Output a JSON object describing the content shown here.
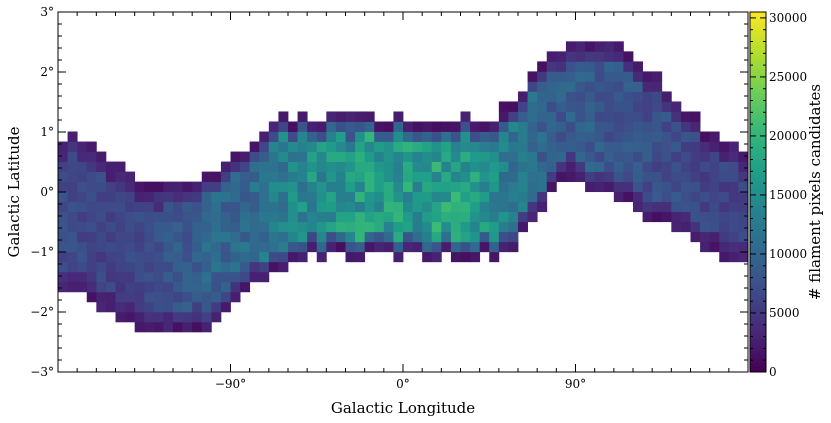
{
  "chart_data": [
    {
      "type": "heatmap",
      "xlabel": "Galactic Longitude",
      "ylabel": "Galactic Latitude",
      "xlim": [
        -180,
        180
      ],
      "ylim": [
        -3,
        3
      ],
      "x_ticks": [
        -90,
        0,
        90
      ],
      "x_tick_labels": [
        "−90°",
        "0°",
        "90°"
      ],
      "y_ticks": [
        -3,
        -2,
        -1,
        0,
        1,
        2,
        3
      ],
      "y_tick_labels": [
        "−3°",
        "−2°",
        "−1°",
        "0°",
        "1°",
        "2°",
        "3°"
      ],
      "bin_size_deg": {
        "longitude": 5,
        "latitude": 0.167
      },
      "colormap": "viridis",
      "colorbar": {
        "label": "# filament pixels candidates",
        "range": [
          0,
          30500
        ],
        "ticks": [
          0,
          5000,
          10000,
          15000,
          20000,
          25000,
          30000
        ],
        "tick_labels": [
          "0",
          "5000",
          "10000",
          "15000",
          "20000",
          "25000",
          "30000"
        ]
      },
      "band_profile": {
        "longitude": [
          -170,
          -160,
          -150,
          -140,
          -130,
          -120,
          -110,
          -100,
          -90,
          -80,
          -70,
          -60,
          -50,
          -40,
          -30,
          -20,
          -10,
          0,
          10,
          20,
          30,
          40,
          50,
          60,
          70,
          80,
          90,
          100,
          110,
          120,
          130,
          140,
          150,
          160,
          170
        ],
        "lat_upper": [
          0.9,
          0.75,
          0.5,
          0.25,
          0.15,
          0.15,
          0.2,
          0.35,
          0.5,
          0.8,
          1.1,
          1.25,
          1.25,
          1.25,
          1.25,
          1.25,
          1.25,
          1.25,
          1.25,
          1.25,
          1.25,
          1.25,
          1.3,
          1.7,
          2.2,
          2.4,
          2.5,
          2.6,
          2.5,
          2.3,
          2.0,
          1.7,
          1.35,
          1.0,
          0.75
        ],
        "lat_lower": [
          -1.6,
          -1.85,
          -2.1,
          -2.25,
          -2.35,
          -2.4,
          -2.35,
          -2.2,
          -1.9,
          -1.6,
          -1.35,
          -1.15,
          -1.1,
          -1.1,
          -1.1,
          -1.1,
          -1.1,
          -1.1,
          -1.1,
          -1.1,
          -1.1,
          -1.1,
          -1.05,
          -0.85,
          -0.4,
          0.1,
          0.3,
          0.1,
          -0.1,
          -0.25,
          -0.45,
          -0.6,
          -0.75,
          -0.9,
          -1.15
        ],
        "typical_counts": [
          7000,
          6500,
          6000,
          6500,
          7000,
          8000,
          9000,
          10000,
          10000,
          11000,
          12000,
          14000,
          15000,
          16000,
          16000,
          17000,
          17000,
          17000,
          17000,
          18000,
          18000,
          16000,
          14000,
          12000,
          10000,
          9000,
          9000,
          9000,
          8000,
          8000,
          7500,
          7500,
          7000,
          6500,
          6000
        ]
      }
    }
  ]
}
